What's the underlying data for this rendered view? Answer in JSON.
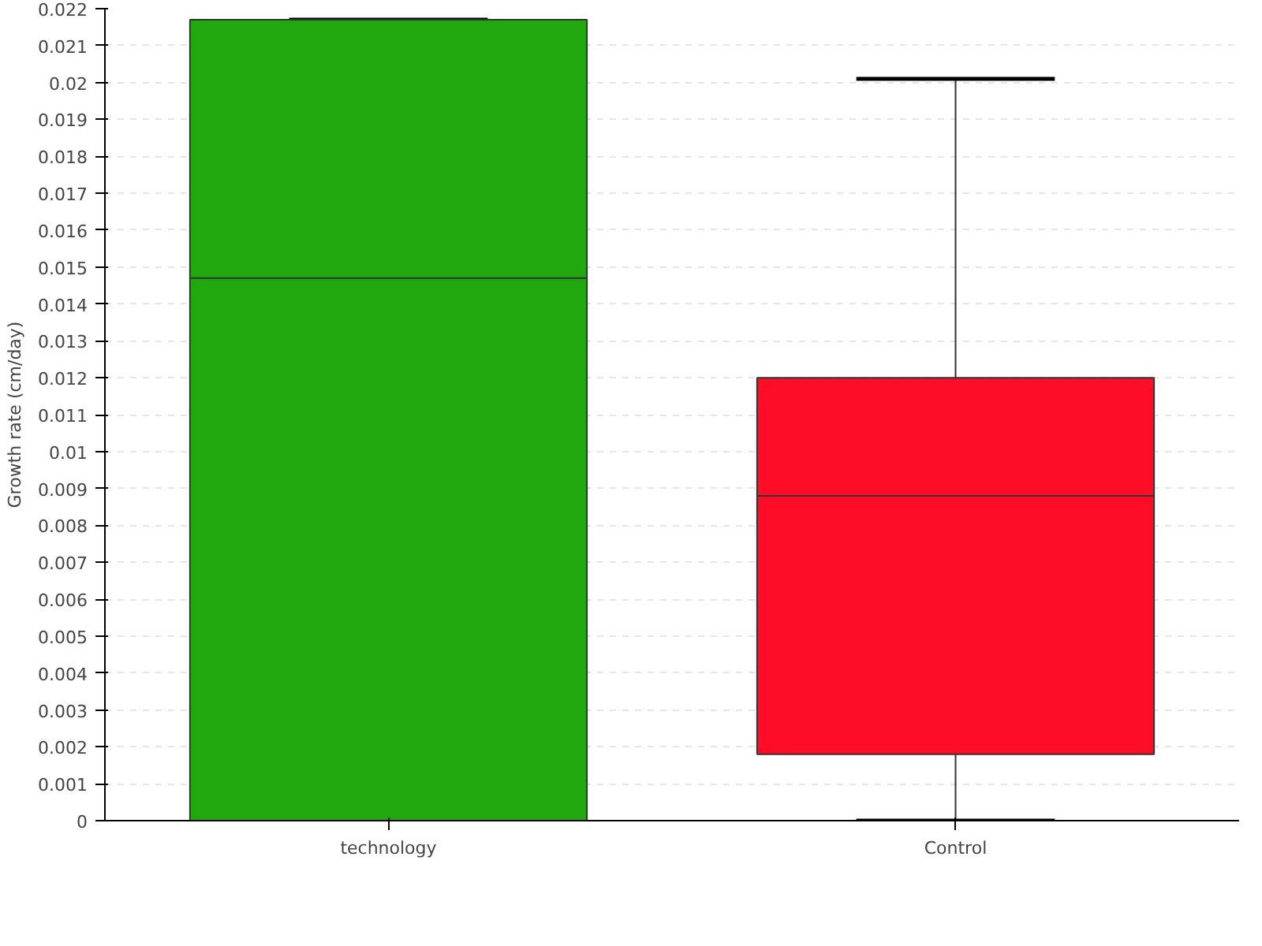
{
  "chart_data": {
    "type": "box",
    "ylabel": "Growth rate (cm/day)",
    "categories": [
      "technology",
      "Control"
    ],
    "colors": [
      "#22a80f",
      "#ff0c27"
    ],
    "boxes": [
      {
        "low": 0,
        "q1": 0,
        "median": 0.0147,
        "q3": 0.0217,
        "high": 0.0217
      },
      {
        "low": 0,
        "q1": 0.0018,
        "median": 0.0088,
        "q3": 0.012,
        "high": 0.0201
      }
    ],
    "ylim": [
      0,
      0.022
    ],
    "yticks": [
      0,
      0.001,
      0.002,
      0.003,
      0.004,
      0.005,
      0.006,
      0.007,
      0.008,
      0.009,
      0.01,
      0.011,
      0.012,
      0.013,
      0.014,
      0.015,
      0.016,
      0.017,
      0.018,
      0.019,
      0.02,
      0.021,
      0.022
    ],
    "grid": "y"
  }
}
